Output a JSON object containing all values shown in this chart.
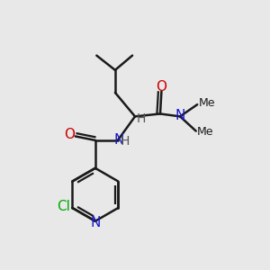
{
  "background_color": "#e8e8e8",
  "bond_color": "#1a1a1a",
  "bond_width": 1.8,
  "figsize": [
    3.0,
    3.0
  ],
  "dpi": 100,
  "colors": {
    "O": "#cc0000",
    "N": "#1a1acc",
    "Cl": "#00aa00",
    "C": "#1a1a1a",
    "H": "#555555"
  }
}
